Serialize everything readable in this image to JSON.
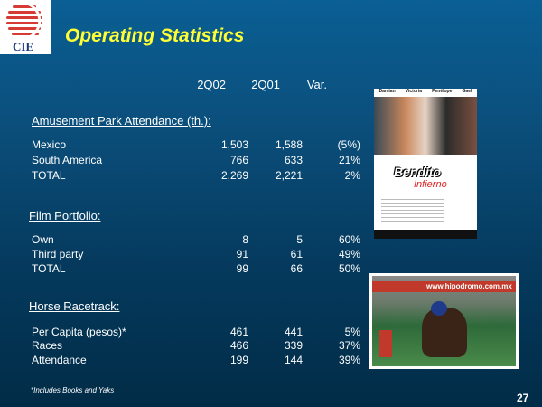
{
  "logo": {
    "text": "CIE",
    "colors": {
      "red": "#d63a35"
    }
  },
  "title": "Operating Statistics",
  "columns": [
    "2Q02",
    "2Q01",
    "Var."
  ],
  "sections": [
    {
      "heading": "Amusement Park Attendance (th.):",
      "rows": [
        {
          "label": "Mexico",
          "v": [
            "1,503",
            "1,588",
            "(5%)"
          ]
        },
        {
          "label": "South America",
          "v": [
            "766",
            "633",
            "21%"
          ]
        },
        {
          "label": "TOTAL",
          "v": [
            "2,269",
            "2,221",
            "2%"
          ]
        }
      ]
    },
    {
      "heading": "Film Portfolio:",
      "rows": [
        {
          "label": "Own",
          "v": [
            "8",
            "5",
            "60%"
          ]
        },
        {
          "label": "Third party",
          "v": [
            "91",
            "61",
            "49%"
          ]
        },
        {
          "label": "TOTAL",
          "v": [
            "99",
            "66",
            "50%"
          ]
        }
      ]
    },
    {
      "heading": "Horse Racetrack:",
      "rows": [
        {
          "label": "Per Capita (pesos)*",
          "v": [
            "461",
            "441",
            "5%"
          ]
        },
        {
          "label": "Races",
          "v": [
            "466",
            "339",
            "37%"
          ]
        },
        {
          "label": "Attendance",
          "v": [
            "199",
            "144",
            "39%"
          ]
        }
      ]
    }
  ],
  "poster": {
    "names": [
      "Damian",
      "Victoria",
      "Penélope",
      "Gael"
    ],
    "title_line1": "Bendito",
    "title_line2": "Infierno"
  },
  "race_photo": {
    "sign": "www.hipodromo.com.mx"
  },
  "footnote": "*Includes Books and Yaks",
  "page_number": "27",
  "colors": {
    "title": "#ffff33",
    "background_top": "#0a5f94",
    "background_bottom": "#012c47"
  }
}
